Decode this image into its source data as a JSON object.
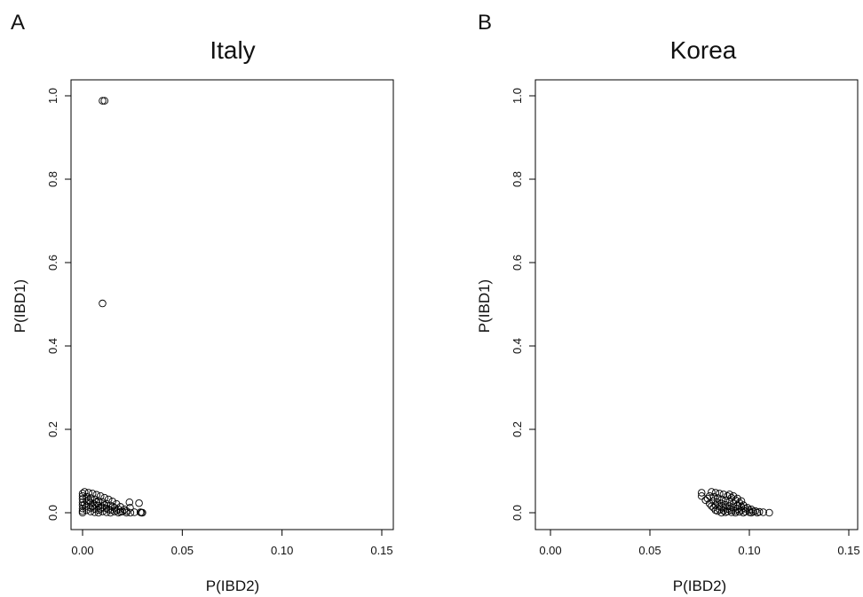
{
  "chart_data": [
    {
      "type": "scatter",
      "panel_label": "A",
      "title": "Italy",
      "xlabel": "P(IBD2)",
      "ylabel": "P(IBD1)",
      "xlim": [
        0.0,
        0.15
      ],
      "ylim": [
        0.0,
        1.0
      ],
      "xticks": [
        "0.00",
        "0.05",
        "0.10",
        "0.15"
      ],
      "yticks": [
        "0.0",
        "0.2",
        "0.4",
        "0.6",
        "0.8",
        "1.0"
      ],
      "grid": false,
      "points": [
        [
          0.01,
          0.988
        ],
        [
          0.011,
          0.988
        ],
        [
          0.01,
          0.502
        ],
        [
          0.0235,
          0.025
        ],
        [
          0.0283,
          0.023
        ],
        [
          0.0238,
          0.012
        ],
        [
          0.029,
          0.001
        ],
        [
          0.03,
          0.0
        ],
        [
          0.0295,
          0.0
        ],
        [
          0.024,
          0.0
        ],
        [
          0.026,
          0.001
        ],
        [
          0.001,
          0.05
        ],
        [
          0.003,
          0.048
        ],
        [
          0.005,
          0.046
        ],
        [
          0.007,
          0.043
        ],
        [
          0.009,
          0.04
        ],
        [
          0.011,
          0.036
        ],
        [
          0.013,
          0.032
        ],
        [
          0.015,
          0.027
        ],
        [
          0.017,
          0.021
        ],
        [
          0.019,
          0.014
        ],
        [
          0.021,
          0.008
        ],
        [
          0.022,
          0.004
        ],
        [
          0.0,
          0.046
        ],
        [
          0.0,
          0.04
        ],
        [
          0.0,
          0.033
        ],
        [
          0.0,
          0.025
        ],
        [
          0.0,
          0.018
        ],
        [
          0.0,
          0.01
        ],
        [
          0.0,
          0.004
        ],
        [
          0.0,
          0.0
        ],
        [
          0.002,
          0.038
        ],
        [
          0.004,
          0.035
        ],
        [
          0.006,
          0.032
        ],
        [
          0.008,
          0.028
        ],
        [
          0.01,
          0.025
        ],
        [
          0.012,
          0.021
        ],
        [
          0.014,
          0.017
        ],
        [
          0.016,
          0.012
        ],
        [
          0.018,
          0.008
        ],
        [
          0.02,
          0.003
        ],
        [
          0.002,
          0.028
        ],
        [
          0.004,
          0.024
        ],
        [
          0.006,
          0.02
        ],
        [
          0.008,
          0.017
        ],
        [
          0.01,
          0.013
        ],
        [
          0.012,
          0.01
        ],
        [
          0.014,
          0.006
        ],
        [
          0.016,
          0.003
        ],
        [
          0.002,
          0.016
        ],
        [
          0.004,
          0.012
        ],
        [
          0.006,
          0.009
        ],
        [
          0.008,
          0.006
        ],
        [
          0.01,
          0.003
        ],
        [
          0.012,
          0.001
        ],
        [
          0.002,
          0.006
        ],
        [
          0.004,
          0.003
        ],
        [
          0.006,
          0.001
        ],
        [
          0.008,
          0.0
        ],
        [
          0.014,
          0.0
        ],
        [
          0.018,
          0.0
        ],
        [
          0.022,
          0.0
        ],
        [
          0.001,
          0.02
        ],
        [
          0.003,
          0.03
        ],
        [
          0.005,
          0.015
        ],
        [
          0.007,
          0.025
        ],
        [
          0.009,
          0.01
        ],
        [
          0.011,
          0.018
        ],
        [
          0.013,
          0.008
        ],
        [
          0.015,
          0.015
        ],
        [
          0.017,
          0.005
        ],
        [
          0.019,
          0.002
        ]
      ]
    },
    {
      "type": "scatter",
      "panel_label": "B",
      "title": "Korea",
      "xlabel": "P(IBD2)",
      "ylabel": "P(IBD1)",
      "xlim": [
        0.0,
        0.15
      ],
      "ylim": [
        0.0,
        1.0
      ],
      "xticks": [
        "0.00",
        "0.05",
        "0.10",
        "0.15"
      ],
      "yticks": [
        "0.0",
        "0.2",
        "0.4",
        "0.6",
        "0.8",
        "1.0"
      ],
      "grid": false,
      "points": [
        [
          0.076,
          0.048
        ],
        [
          0.076,
          0.04
        ],
        [
          0.078,
          0.03
        ],
        [
          0.08,
          0.022
        ],
        [
          0.082,
          0.012
        ],
        [
          0.081,
          0.05
        ],
        [
          0.083,
          0.048
        ],
        [
          0.085,
          0.046
        ],
        [
          0.087,
          0.044
        ],
        [
          0.089,
          0.04
        ],
        [
          0.091,
          0.036
        ],
        [
          0.093,
          0.03
        ],
        [
          0.095,
          0.024
        ],
        [
          0.097,
          0.018
        ],
        [
          0.099,
          0.012
        ],
        [
          0.101,
          0.008
        ],
        [
          0.103,
          0.004
        ],
        [
          0.105,
          0.002
        ],
        [
          0.107,
          0.001
        ],
        [
          0.11,
          0.0
        ],
        [
          0.08,
          0.04
        ],
        [
          0.082,
          0.038
        ],
        [
          0.084,
          0.035
        ],
        [
          0.086,
          0.032
        ],
        [
          0.088,
          0.029
        ],
        [
          0.09,
          0.026
        ],
        [
          0.092,
          0.022
        ],
        [
          0.094,
          0.018
        ],
        [
          0.096,
          0.014
        ],
        [
          0.098,
          0.01
        ],
        [
          0.1,
          0.006
        ],
        [
          0.102,
          0.003
        ],
        [
          0.082,
          0.028
        ],
        [
          0.084,
          0.025
        ],
        [
          0.086,
          0.022
        ],
        [
          0.088,
          0.019
        ],
        [
          0.09,
          0.016
        ],
        [
          0.092,
          0.012
        ],
        [
          0.094,
          0.009
        ],
        [
          0.096,
          0.006
        ],
        [
          0.098,
          0.003
        ],
        [
          0.1,
          0.001
        ],
        [
          0.083,
          0.018
        ],
        [
          0.085,
          0.015
        ],
        [
          0.087,
          0.012
        ],
        [
          0.089,
          0.009
        ],
        [
          0.091,
          0.006
        ],
        [
          0.093,
          0.004
        ],
        [
          0.095,
          0.002
        ],
        [
          0.085,
          0.008
        ],
        [
          0.087,
          0.005
        ],
        [
          0.089,
          0.003
        ],
        [
          0.091,
          0.001
        ],
        [
          0.093,
          0.0
        ],
        [
          0.097,
          0.0
        ],
        [
          0.101,
          0.0
        ],
        [
          0.104,
          0.0
        ],
        [
          0.086,
          0.0
        ],
        [
          0.088,
          0.001
        ],
        [
          0.084,
          0.004
        ],
        [
          0.079,
          0.034
        ],
        [
          0.081,
          0.016
        ],
        [
          0.083,
          0.006
        ],
        [
          0.09,
          0.044
        ],
        [
          0.092,
          0.04
        ],
        [
          0.094,
          0.034
        ],
        [
          0.096,
          0.028
        ]
      ]
    }
  ]
}
